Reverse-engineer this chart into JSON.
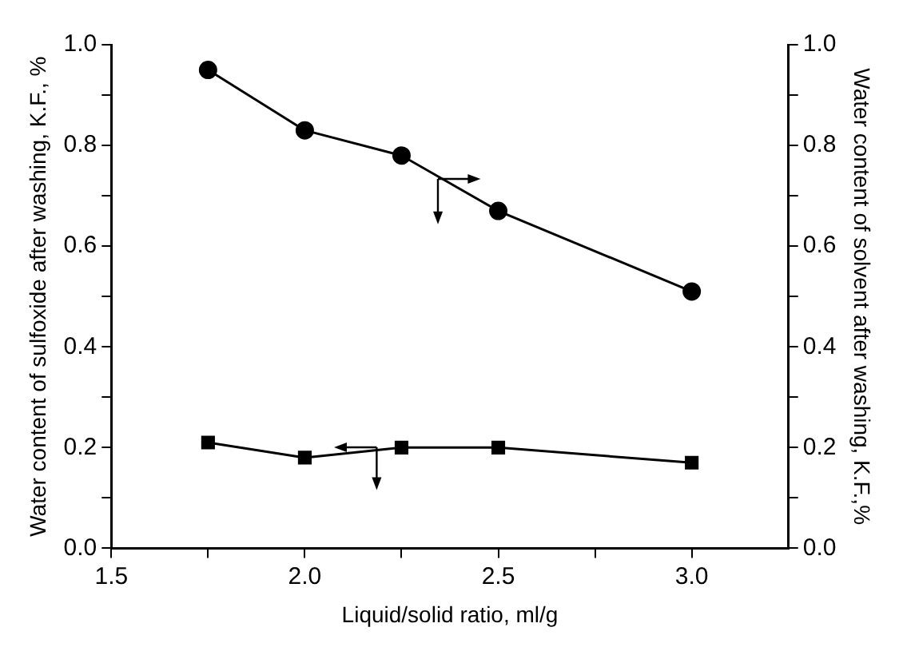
{
  "chart_data": {
    "type": "line",
    "xlabel": "Liquid/solid ratio, ml/g",
    "ylabel": "Water content of sulfoxide after washing, K.F., %",
    "y2label": "Water content of solvent after washing, K.F.,%",
    "x": [
      1.75,
      2.0,
      2.25,
      2.5,
      3.0
    ],
    "series": [
      {
        "color": "#000000",
        "values": [
          0.21,
          0.18,
          0.2,
          0.2,
          0.17
        ],
        "axis": "y",
        "marker": "square"
      },
      {
        "color": "#000000",
        "values": [
          0.95,
          0.83,
          0.78,
          0.67,
          0.51
        ],
        "axis": "y2",
        "marker": "circle"
      }
    ],
    "xlim": [
      1.5,
      3.25
    ],
    "xticks": [
      1.5,
      {
        "value": 1.75,
        "label": null
      },
      {
        "value": 2,
        "label": "2.0"
      },
      {
        "value": 2.25,
        "label": null
      },
      2.5,
      {
        "value": 2.75,
        "label": null
      },
      {
        "value": 3,
        "label": "3.0"
      }
    ],
    "ylim": [
      0,
      1
    ],
    "yticks": [
      {
        "value": 0,
        "label": "0.0"
      },
      {
        "value": 0.1,
        "label": null
      },
      0.2,
      {
        "value": 0.3,
        "label": null
      },
      0.4,
      {
        "value": 0.5,
        "label": null
      },
      0.6,
      {
        "value": 0.7,
        "label": null
      },
      0.8,
      {
        "value": 0.9,
        "label": null
      },
      {
        "value": 1,
        "label": "1.0"
      }
    ],
    "y2lim": [
      0,
      1
    ],
    "y2ticks": [
      {
        "value": 0,
        "label": "0.0"
      },
      {
        "value": 0.1,
        "label": null
      },
      0.2,
      {
        "value": 0.3,
        "label": null
      },
      0.4,
      {
        "value": 0.5,
        "label": null
      },
      0.6,
      {
        "value": 0.7,
        "label": null
      },
      0.8,
      {
        "value": 0.9,
        "label": null
      },
      {
        "value": 1,
        "label": "1.0"
      }
    ],
    "grid": false,
    "legend": false,
    "line_style": "solid"
  }
}
